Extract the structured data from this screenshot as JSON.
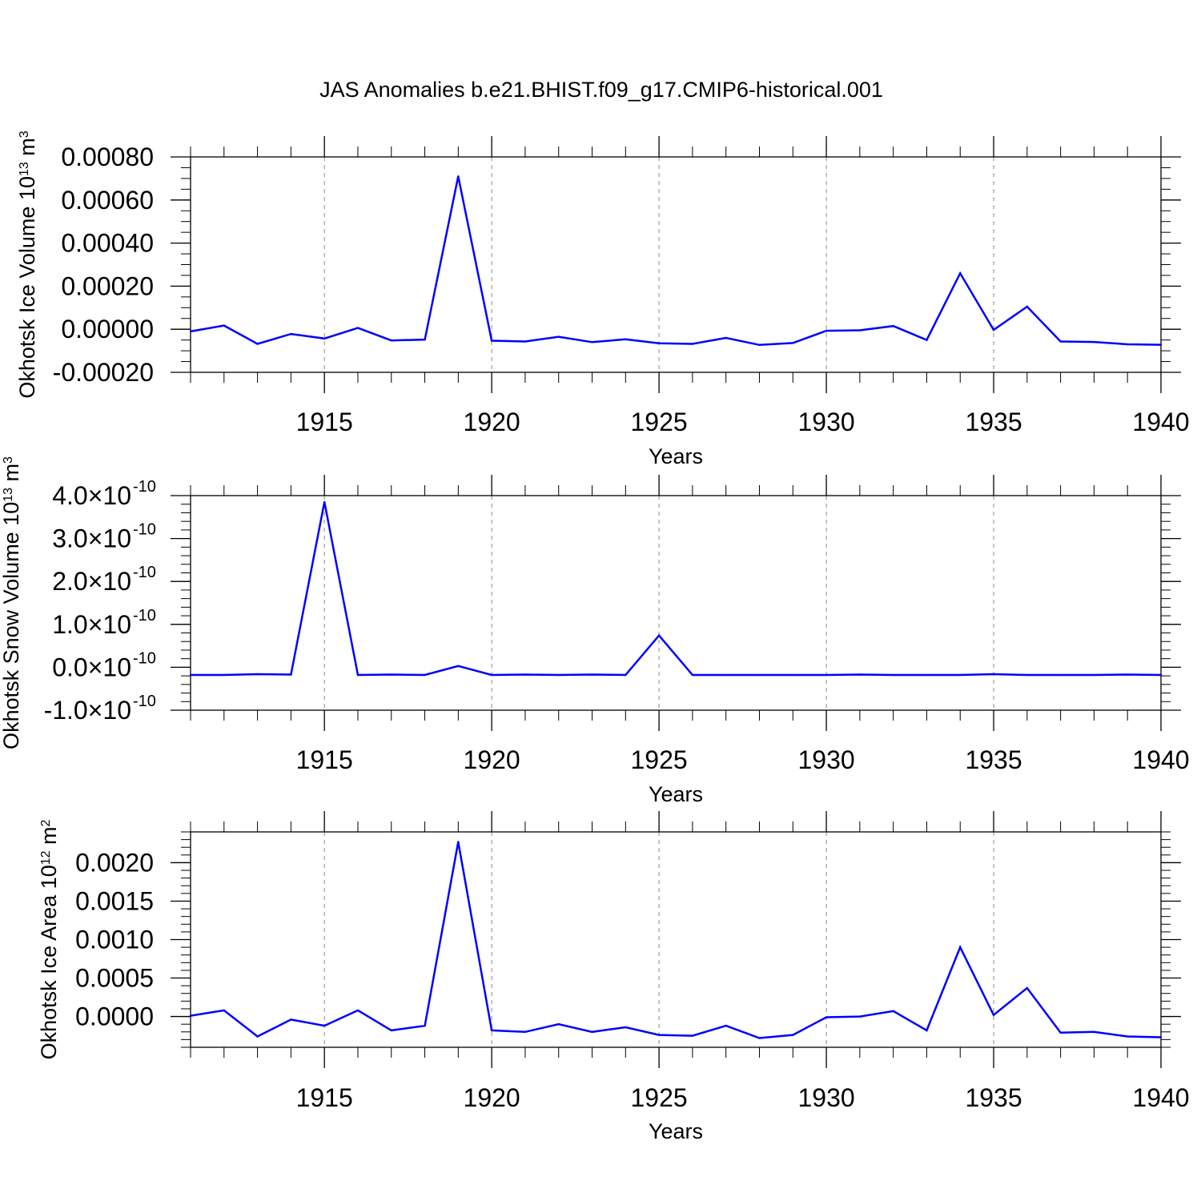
{
  "title": "JAS Anomalies b.e21.BHIST.f09_g17.CMIP6-historical.001",
  "colors": {
    "series": "#0000ff",
    "frame": "#000000",
    "grid": "#888888"
  },
  "chart_data": [
    {
      "type": "line",
      "title": "JAS Anomalies b.e21.BHIST.f09_g17.CMIP6-historical.001",
      "xlabel": "Years",
      "ylabel": "Okhotsk Ice Volume 10",
      "ylabel_exp": "13",
      "ylabel_unit": " m",
      "ylabel_unit_exp": "3",
      "xlim": [
        1911,
        1940
      ],
      "ylim": [
        -0.0002,
        0.0008
      ],
      "x_ticks": [
        1915,
        1920,
        1925,
        1930,
        1935,
        1940
      ],
      "x_tick_labels": [
        "1915",
        "1920",
        "1925",
        "1930",
        "1935",
        "1940"
      ],
      "y_ticks": [
        -0.0002,
        0.0,
        0.0002,
        0.0004,
        0.0006,
        0.0008
      ],
      "y_tick_labels": [
        "-0.00020",
        "0.00000",
        "0.00020",
        "0.00040",
        "0.00060",
        "0.00080"
      ],
      "y_tick_exp": null,
      "y_minor_step": 5e-05,
      "grid": "vertical-dashed",
      "x": [
        1911,
        1912,
        1913,
        1914,
        1915,
        1916,
        1917,
        1918,
        1919,
        1920,
        1921,
        1922,
        1923,
        1924,
        1925,
        1926,
        1927,
        1928,
        1929,
        1930,
        1931,
        1932,
        1933,
        1934,
        1935,
        1936,
        1937,
        1938,
        1939,
        1940
      ],
      "values": [
        -1e-05,
        1.7e-05,
        -6.8e-05,
        -2.2e-05,
        -4.3e-05,
        6e-06,
        -5.2e-05,
        -4.8e-05,
        0.00071,
        -5.3e-05,
        -5.7e-05,
        -3.5e-05,
        -6e-05,
        -4.7e-05,
        -6.5e-05,
        -6.8e-05,
        -4e-05,
        -7.3e-05,
        -6.4e-05,
        -7e-06,
        -5e-06,
        1.5e-05,
        -5e-05,
        0.00026,
        -3e-06,
        0.000105,
        -5.7e-05,
        -5.9e-05,
        -7e-05,
        -7.2e-05
      ]
    },
    {
      "type": "line",
      "xlabel": "Years",
      "ylabel": "Okhotsk Snow Volume 10",
      "ylabel_exp": "13",
      "ylabel_unit": " m",
      "ylabel_unit_exp": "3",
      "xlim": [
        1911,
        1940
      ],
      "ylim": [
        -1.0,
        4.0
      ],
      "y_scale_note": "values in units of 10^-10",
      "x_ticks": [
        1915,
        1920,
        1925,
        1930,
        1935,
        1940
      ],
      "x_tick_labels": [
        "1915",
        "1920",
        "1925",
        "1930",
        "1935",
        "1940"
      ],
      "y_ticks": [
        -1.0,
        0.0,
        1.0,
        2.0,
        3.0,
        4.0
      ],
      "y_tick_labels": [
        "-1.0×10",
        "0.0×10",
        "1.0×10",
        "2.0×10",
        "3.0×10",
        "4.0×10"
      ],
      "y_tick_exp": "-10",
      "y_minor_step": 0.2,
      "grid": "vertical-dashed",
      "x": [
        1911,
        1912,
        1913,
        1914,
        1915,
        1916,
        1917,
        1918,
        1919,
        1920,
        1921,
        1922,
        1923,
        1924,
        1925,
        1926,
        1927,
        1928,
        1929,
        1930,
        1931,
        1932,
        1933,
        1934,
        1935,
        1936,
        1937,
        1938,
        1939,
        1940
      ],
      "values": [
        -0.18,
        -0.18,
        -0.16,
        -0.17,
        3.85,
        -0.18,
        -0.17,
        -0.18,
        0.03,
        -0.18,
        -0.17,
        -0.18,
        -0.17,
        -0.18,
        0.74,
        -0.18,
        -0.18,
        -0.18,
        -0.18,
        -0.18,
        -0.17,
        -0.18,
        -0.18,
        -0.18,
        -0.16,
        -0.18,
        -0.18,
        -0.18,
        -0.17,
        -0.18
      ]
    },
    {
      "type": "line",
      "xlabel": "Years",
      "ylabel": "Okhotsk Ice Area 10",
      "ylabel_exp": "12",
      "ylabel_unit": " m",
      "ylabel_unit_exp": "2",
      "xlim": [
        1911,
        1940
      ],
      "ylim": [
        -0.0004,
        0.0024
      ],
      "x_ticks": [
        1915,
        1920,
        1925,
        1930,
        1935,
        1940
      ],
      "x_tick_labels": [
        "1915",
        "1920",
        "1925",
        "1930",
        "1935",
        "1940"
      ],
      "y_ticks": [
        0.0,
        0.0005,
        0.001,
        0.0015,
        0.002
      ],
      "y_tick_labels": [
        "0.0000",
        "0.0005",
        "0.0010",
        "0.0015",
        "0.0020"
      ],
      "y_tick_exp": null,
      "y_minor_step": 0.0001,
      "grid": "vertical-dashed",
      "x": [
        1911,
        1912,
        1913,
        1914,
        1915,
        1916,
        1917,
        1918,
        1919,
        1920,
        1921,
        1922,
        1923,
        1924,
        1925,
        1926,
        1927,
        1928,
        1929,
        1930,
        1931,
        1932,
        1933,
        1934,
        1935,
        1936,
        1937,
        1938,
        1939,
        1940
      ],
      "values": [
        1e-05,
        8e-05,
        -0.00026,
        -4e-05,
        -0.00012,
        8e-05,
        -0.00018,
        -0.00012,
        0.00227,
        -0.00018,
        -0.0002,
        -0.0001,
        -0.0002,
        -0.00014,
        -0.00024,
        -0.00025,
        -0.00012,
        -0.00028,
        -0.00024,
        -1e-05,
        0.0,
        7e-05,
        -0.00018,
        0.0009,
        2e-05,
        0.00037,
        -0.00021,
        -0.0002,
        -0.00026,
        -0.00027
      ]
    }
  ]
}
